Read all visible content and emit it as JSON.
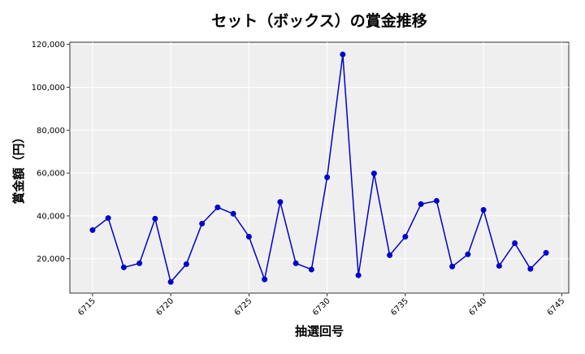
{
  "chart_data": {
    "type": "line",
    "title": "セット（ボックス）の賞金推移",
    "xlabel": "抽選回号",
    "ylabel": "賞金額（円）",
    "xlim": [
      6713.55,
      6745.45
    ],
    "ylim": [
      4000,
      121000
    ],
    "x_ticks": [
      6715,
      6720,
      6725,
      6730,
      6735,
      6740,
      6745
    ],
    "y_ticks": [
      20000,
      40000,
      60000,
      80000,
      100000,
      120000
    ],
    "y_tick_labels": [
      "20,000",
      "40,000",
      "60,000",
      "80,000",
      "100,000",
      "120,000"
    ],
    "grid": true,
    "series": [
      {
        "color": "#0000cc",
        "marker": "circle",
        "x": [
          6715,
          6716,
          6717,
          6718,
          6719,
          6720,
          6721,
          6722,
          6723,
          6724,
          6725,
          6726,
          6727,
          6728,
          6729,
          6730,
          6731,
          6732,
          6733,
          6734,
          6735,
          6736,
          6737,
          6738,
          6739,
          6740,
          6741,
          6742,
          6743,
          6744
        ],
        "values": [
          33400,
          39000,
          16000,
          17900,
          38700,
          9200,
          17500,
          36400,
          44000,
          41000,
          30300,
          10400,
          46500,
          17900,
          15000,
          58000,
          115300,
          12300,
          59800,
          21700,
          30300,
          45500,
          47000,
          16400,
          22100,
          42800,
          16700,
          27300,
          15300,
          22800
        ]
      }
    ]
  }
}
